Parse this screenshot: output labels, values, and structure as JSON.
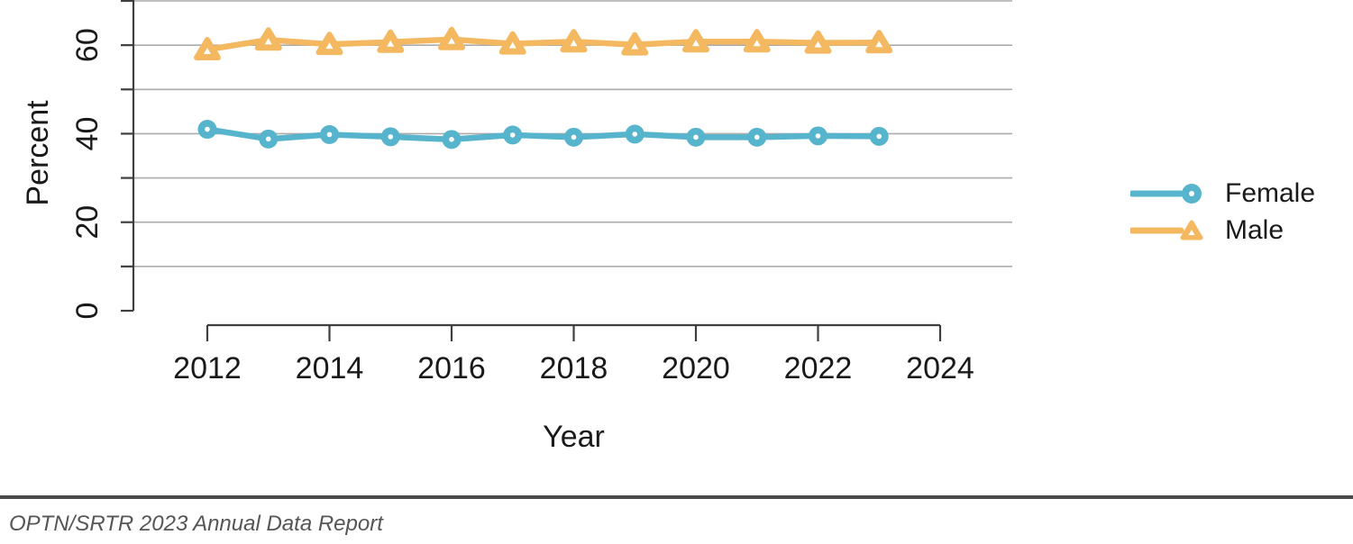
{
  "chart_data": {
    "type": "line",
    "title": "",
    "xlabel": "Year",
    "ylabel": "Percent",
    "x": [
      2012,
      2013,
      2014,
      2015,
      2016,
      2017,
      2018,
      2019,
      2020,
      2021,
      2022,
      2023
    ],
    "series": [
      {
        "name": "Female",
        "marker": "circle",
        "color": "#56B4CD",
        "values": [
          41.0,
          38.8,
          39.8,
          39.3,
          38.7,
          39.7,
          39.2,
          39.9,
          39.2,
          39.2,
          39.5,
          39.4
        ]
      },
      {
        "name": "Male",
        "marker": "triangle",
        "color": "#F4B860",
        "values": [
          59.0,
          61.2,
          60.2,
          60.7,
          61.3,
          60.3,
          60.8,
          60.1,
          60.8,
          60.8,
          60.5,
          60.6
        ]
      }
    ],
    "xlim": [
      2012,
      2024
    ],
    "ylim": [
      0,
      70
    ],
    "x_ticks": [
      2012,
      2014,
      2016,
      2018,
      2020,
      2022,
      2024
    ],
    "y_ticks": [
      0,
      10,
      20,
      30,
      40,
      50,
      60,
      70
    ],
    "y_tick_labels": [
      "0",
      "",
      "20",
      "",
      "40",
      "",
      "60",
      ""
    ],
    "grid": "horizontal-gridlines-every-10-no-line-at-0",
    "legend_position": "right-middle",
    "colors": {
      "gridline": "#ABABAB",
      "axis": "#3F3F3F",
      "tick_text": "#1a1a1a"
    }
  },
  "legend": {
    "items": [
      {
        "label": "Female"
      },
      {
        "label": "Male"
      }
    ]
  },
  "footer": {
    "citation": "OPTN/SRTR 2023 Annual Data Report"
  }
}
